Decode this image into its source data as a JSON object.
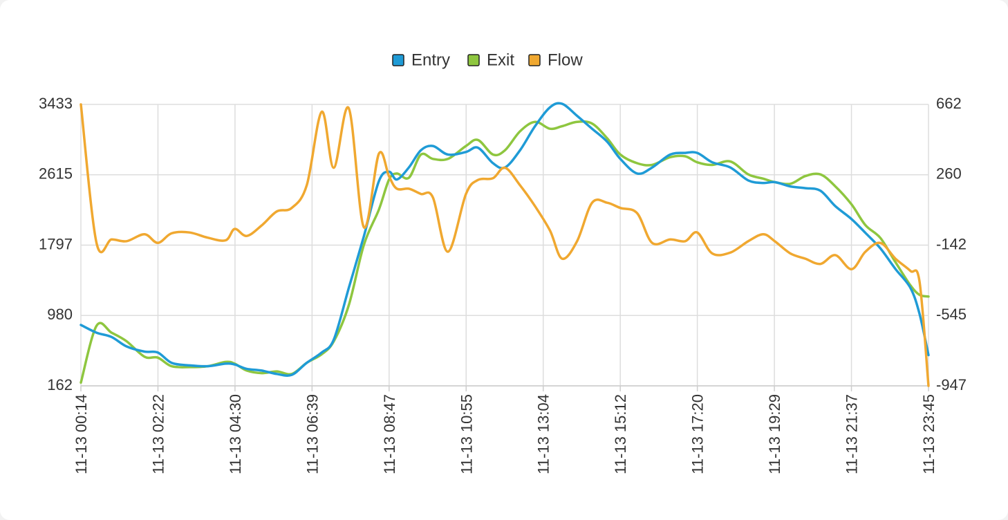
{
  "chart_data": {
    "type": "line",
    "legend_position": "top-center",
    "grid": true,
    "x_ticks": [
      "11-13 00:14",
      "11-13 02:22",
      "11-13 04:30",
      "11-13 06:39",
      "11-13 08:47",
      "11-13 10:55",
      "11-13 13:04",
      "11-13 15:12",
      "11-13 17:20",
      "11-13 19:29",
      "11-13 21:37",
      "11-13 23:45"
    ],
    "x_range_hours": [
      0.233,
      23.75
    ],
    "y_left": {
      "ticks": [
        "162",
        "980",
        "1797",
        "2615",
        "3433"
      ],
      "range": [
        162,
        3433
      ]
    },
    "y_right": {
      "ticks": [
        "-947",
        "-545",
        "-142",
        "260",
        "662"
      ],
      "range": [
        -947,
        662
      ]
    },
    "series": [
      {
        "name": "Entry",
        "color": "#1f9bd6",
        "axis": "left",
        "x": [
          "00:14",
          "00:40",
          "01:05",
          "01:30",
          "02:00",
          "02:22",
          "02:45",
          "03:15",
          "03:45",
          "04:15",
          "04:30",
          "04:50",
          "05:15",
          "05:40",
          "06:05",
          "06:30",
          "06:55",
          "07:15",
          "07:40",
          "08:05",
          "08:30",
          "08:47",
          "09:00",
          "09:20",
          "09:40",
          "10:00",
          "10:25",
          "10:55",
          "11:15",
          "11:40",
          "12:00",
          "12:25",
          "12:50",
          "13:15",
          "13:35",
          "14:00",
          "14:25",
          "14:50",
          "15:12",
          "15:40",
          "16:05",
          "16:35",
          "17:00",
          "17:20",
          "17:45",
          "18:15",
          "18:45",
          "19:10",
          "19:29",
          "19:55",
          "20:20",
          "20:45",
          "21:10",
          "21:37",
          "22:00",
          "22:25",
          "22:50",
          "23:15",
          "23:30",
          "23:45"
        ],
        "values": [
          870,
          780,
          730,
          620,
          560,
          550,
          430,
          400,
          390,
          420,
          410,
          360,
          340,
          300,
          290,
          430,
          550,
          700,
          1300,
          1900,
          2540,
          2650,
          2560,
          2700,
          2900,
          2950,
          2850,
          2880,
          2930,
          2750,
          2700,
          2900,
          3180,
          3400,
          3440,
          3300,
          3150,
          3000,
          2800,
          2630,
          2700,
          2850,
          2870,
          2870,
          2760,
          2700,
          2550,
          2520,
          2530,
          2480,
          2460,
          2430,
          2250,
          2100,
          1940,
          1760,
          1520,
          1300,
          1000,
          520
        ]
      },
      {
        "name": "Exit",
        "color": "#8ec63f",
        "axis": "left",
        "x": [
          "00:14",
          "00:40",
          "01:05",
          "01:30",
          "02:00",
          "02:22",
          "02:45",
          "03:15",
          "03:45",
          "04:15",
          "04:30",
          "04:50",
          "05:15",
          "05:40",
          "06:05",
          "06:30",
          "06:55",
          "07:15",
          "07:40",
          "08:05",
          "08:30",
          "08:47",
          "09:00",
          "09:20",
          "09:40",
          "10:00",
          "10:25",
          "10:55",
          "11:15",
          "11:40",
          "12:00",
          "12:25",
          "12:50",
          "13:15",
          "13:35",
          "14:00",
          "14:25",
          "14:50",
          "15:12",
          "15:40",
          "16:05",
          "16:35",
          "17:00",
          "17:20",
          "17:45",
          "18:15",
          "18:45",
          "19:10",
          "19:29",
          "19:55",
          "20:20",
          "20:45",
          "21:10",
          "21:37",
          "22:00",
          "22:25",
          "22:50",
          "23:15",
          "23:30",
          "23:45"
        ],
        "values": [
          200,
          860,
          780,
          680,
          500,
          490,
          390,
          380,
          390,
          440,
          420,
          340,
          310,
          330,
          300,
          430,
          530,
          680,
          1100,
          1800,
          2210,
          2560,
          2630,
          2580,
          2850,
          2800,
          2800,
          2950,
          3020,
          2850,
          2900,
          3120,
          3230,
          3150,
          3180,
          3230,
          3210,
          3040,
          2850,
          2750,
          2730,
          2820,
          2830,
          2760,
          2730,
          2770,
          2620,
          2570,
          2530,
          2510,
          2600,
          2620,
          2480,
          2270,
          2030,
          1880,
          1600,
          1330,
          1220,
          1200
        ]
      },
      {
        "name": "Flow",
        "color": "#f0a830",
        "axis": "right",
        "x": [
          "00:14",
          "00:40",
          "01:05",
          "01:30",
          "02:00",
          "02:22",
          "02:45",
          "03:15",
          "03:45",
          "04:15",
          "04:30",
          "04:50",
          "05:15",
          "05:40",
          "06:05",
          "06:30",
          "06:55",
          "07:15",
          "07:40",
          "08:05",
          "08:30",
          "08:47",
          "09:00",
          "09:20",
          "09:40",
          "10:00",
          "10:25",
          "10:55",
          "11:15",
          "11:40",
          "12:00",
          "12:25",
          "12:50",
          "13:15",
          "13:35",
          "14:00",
          "14:25",
          "14:50",
          "15:12",
          "15:40",
          "16:05",
          "16:35",
          "17:00",
          "17:20",
          "17:45",
          "18:15",
          "18:45",
          "19:10",
          "19:29",
          "19:55",
          "20:20",
          "20:45",
          "21:10",
          "21:37",
          "22:00",
          "22:25",
          "22:50",
          "23:15",
          "23:30",
          "23:45"
        ],
        "values": [
          662,
          -130,
          -110,
          -120,
          -80,
          -130,
          -75,
          -70,
          -100,
          -115,
          -50,
          -90,
          -30,
          50,
          70,
          200,
          620,
          300,
          640,
          -40,
          380,
          250,
          180,
          180,
          150,
          130,
          -180,
          150,
          230,
          240,
          300,
          200,
          80,
          -60,
          -220,
          -120,
          100,
          100,
          70,
          40,
          -130,
          -110,
          -120,
          -70,
          -190,
          -185,
          -120,
          -80,
          -120,
          -190,
          -220,
          -250,
          -200,
          -280,
          -180,
          -130,
          -220,
          -290,
          -350,
          -947
        ]
      }
    ]
  }
}
